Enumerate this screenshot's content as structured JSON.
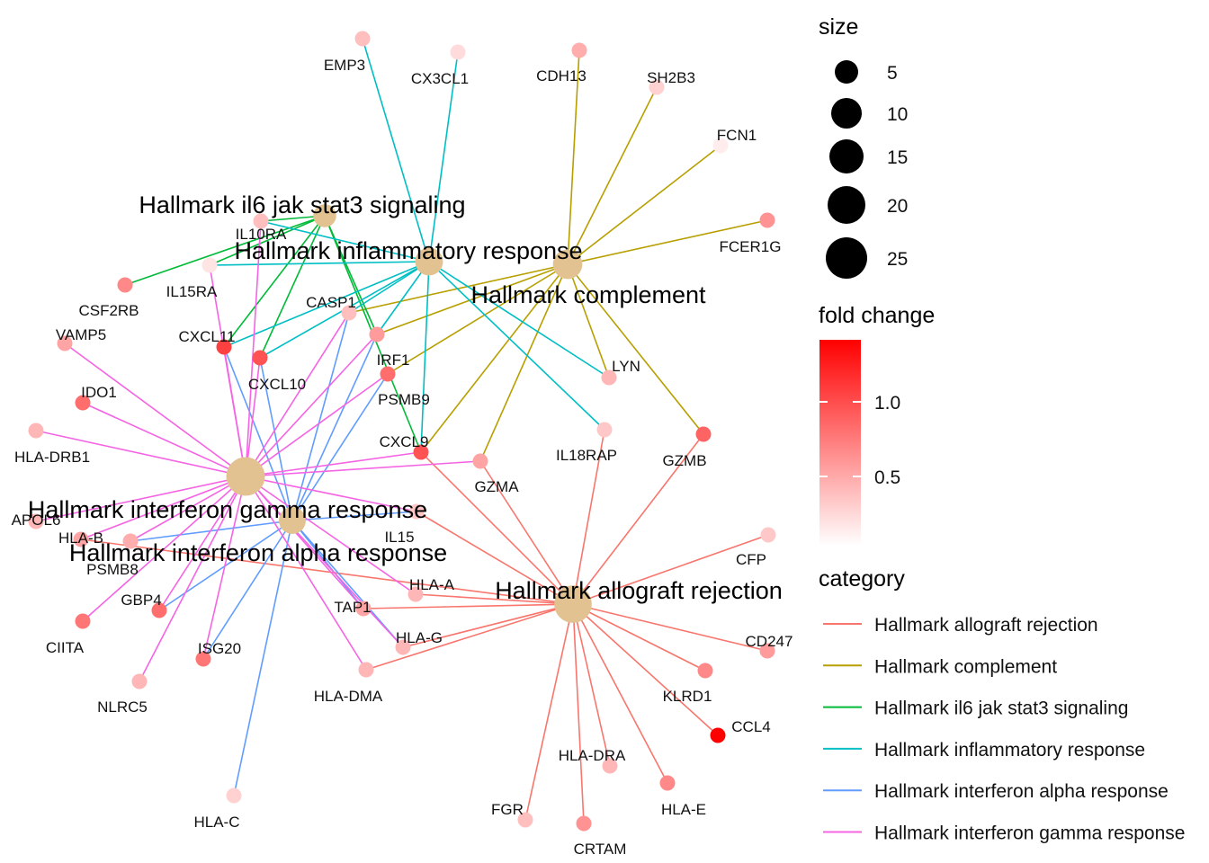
{
  "categories": [
    {
      "name": "Hallmark allograft rejection",
      "color": "#F8766D",
      "size": 26
    },
    {
      "name": "Hallmark complement",
      "color": "#B79F00",
      "size": 14
    },
    {
      "name": "Hallmark il6 jak stat3 signaling",
      "color": "#00BA38",
      "size": 7
    },
    {
      "name": "Hallmark inflammatory response",
      "color": "#00BFC4",
      "size": 12
    },
    {
      "name": "Hallmark interferon alpha response",
      "color": "#619CFF",
      "size": 11
    },
    {
      "name": "Hallmark interferon gamma response",
      "color": "#F564E3",
      "size": 28
    }
  ],
  "genes": [
    {
      "name": "EMP3",
      "fc": 0.35
    },
    {
      "name": "CX3CL1",
      "fc": 0.2
    },
    {
      "name": "CDH13",
      "fc": 0.45
    },
    {
      "name": "SH2B3",
      "fc": 0.25
    },
    {
      "name": "FCN1",
      "fc": 0.1
    },
    {
      "name": "FCER1G",
      "fc": 0.6
    },
    {
      "name": "IL10RA",
      "fc": 0.35
    },
    {
      "name": "IL15RA",
      "fc": 0.15
    },
    {
      "name": "CSF2RB",
      "fc": 0.65
    },
    {
      "name": "CASP1",
      "fc": 0.35
    },
    {
      "name": "VAMP5",
      "fc": 0.5
    },
    {
      "name": "CXCL11",
      "fc": 1.05
    },
    {
      "name": "CXCL10",
      "fc": 0.95
    },
    {
      "name": "IRF1",
      "fc": 0.55
    },
    {
      "name": "PSMB9",
      "fc": 0.8
    },
    {
      "name": "IDO1",
      "fc": 0.8
    },
    {
      "name": "LYN",
      "fc": 0.4
    },
    {
      "name": "IL18RAP",
      "fc": 0.3
    },
    {
      "name": "GZMB",
      "fc": 0.85
    },
    {
      "name": "HLA-DRB1",
      "fc": 0.4
    },
    {
      "name": "CXCL9",
      "fc": 0.95
    },
    {
      "name": "GZMA",
      "fc": 0.5
    },
    {
      "name": "APOL6",
      "fc": 0.4
    },
    {
      "name": "IL15",
      "fc": 0.3
    },
    {
      "name": "CFP",
      "fc": 0.3
    },
    {
      "name": "HLA-B",
      "fc": 0.5
    },
    {
      "name": "PSMB8",
      "fc": 0.45
    },
    {
      "name": "HLA-A",
      "fc": 0.4
    },
    {
      "name": "GBP4",
      "fc": 0.8
    },
    {
      "name": "TAP1",
      "fc": 0.5
    },
    {
      "name": "CIITA",
      "fc": 0.75
    },
    {
      "name": "HLA-G",
      "fc": 0.4
    },
    {
      "name": "ISG20",
      "fc": 0.75
    },
    {
      "name": "CD247",
      "fc": 0.55
    },
    {
      "name": "HLA-DMA",
      "fc": 0.4
    },
    {
      "name": "NLRC5",
      "fc": 0.4
    },
    {
      "name": "KLRD1",
      "fc": 0.65
    },
    {
      "name": "CCL4",
      "fc": 1.4
    },
    {
      "name": "HLA-DRA",
      "fc": 0.4
    },
    {
      "name": "FGR",
      "fc": 0.35
    },
    {
      "name": "HLA-E",
      "fc": 0.65
    },
    {
      "name": "CRTAM",
      "fc": 0.6
    },
    {
      "name": "HLA-C",
      "fc": 0.25
    }
  ],
  "legend": {
    "size": {
      "title": "size",
      "values": [
        "5",
        "10",
        "15",
        "20",
        "25"
      ]
    },
    "fold_change": {
      "title": "fold change",
      "ticks": [
        "1.0",
        "0.5"
      ],
      "low_color": "#FFFFFF",
      "high_color": "#FF0000"
    },
    "category": {
      "title": "category"
    }
  }
}
